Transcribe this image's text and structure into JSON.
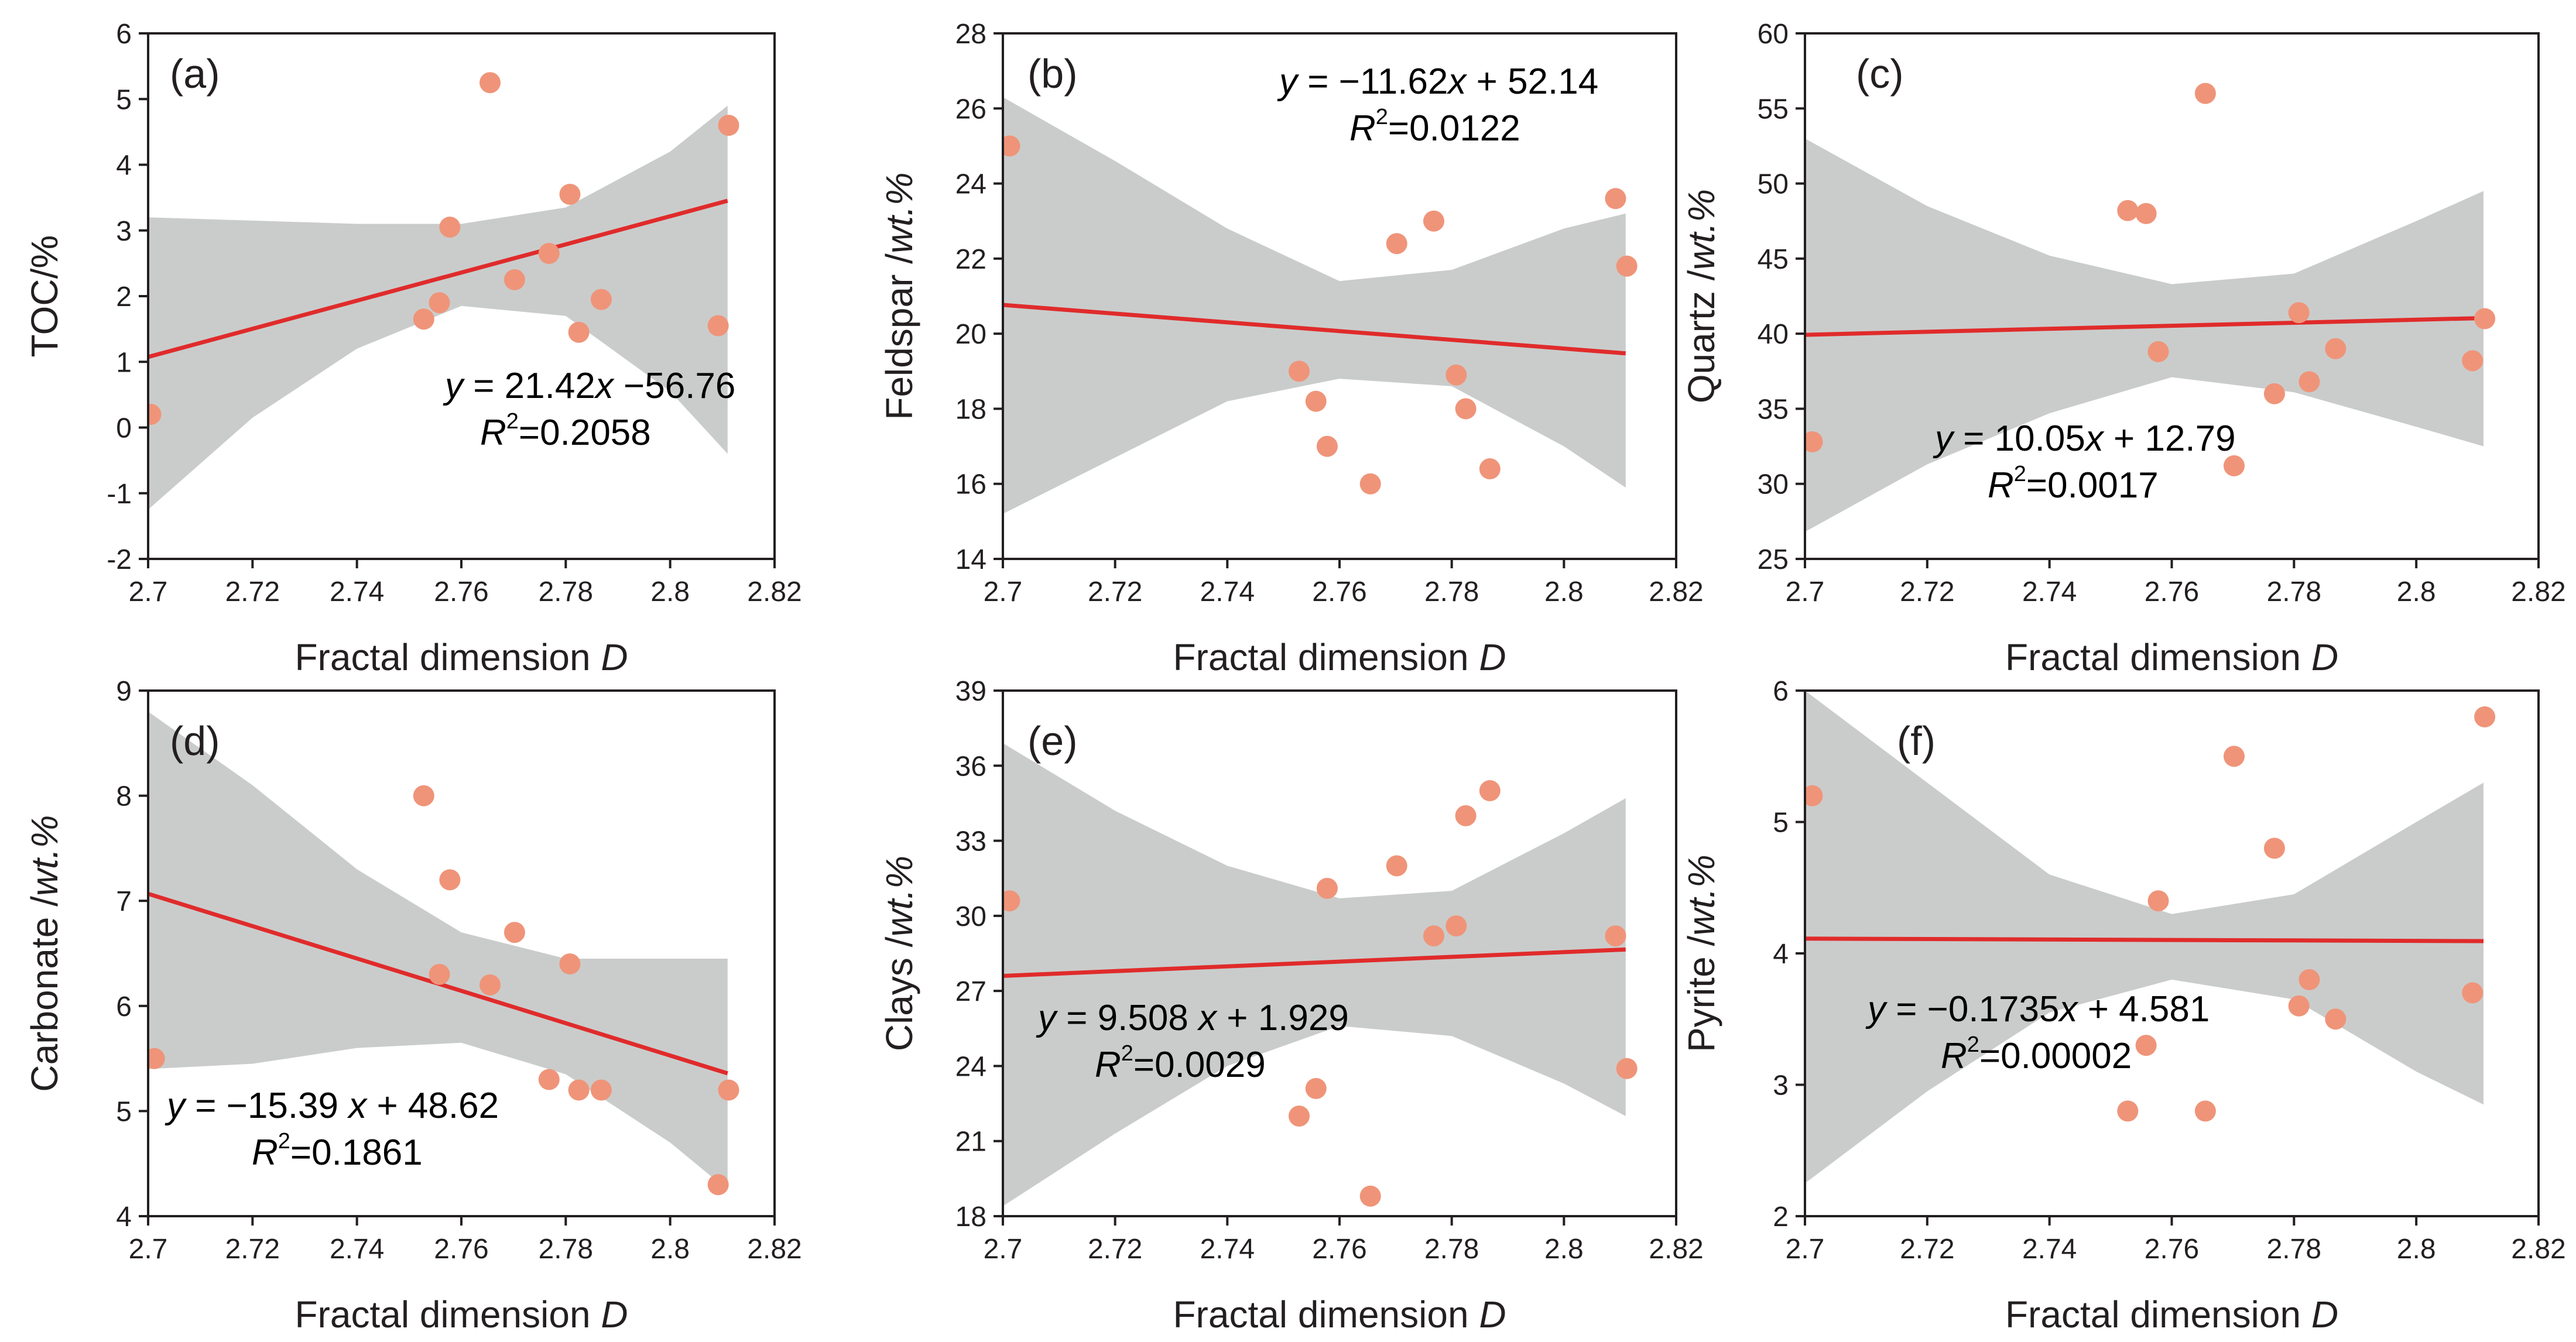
{
  "colors": {
    "regression_line": "#e02b2b",
    "points": "#ef9479",
    "confidence_band": "#cacccb",
    "axis": "#231f20"
  },
  "chart_data": [
    {
      "id": "a",
      "type": "scatter",
      "panel_label": "(a)",
      "xlabel": "Fractal dimension",
      "xlabel_italic": "D",
      "ylabel": "TOC/%",
      "ylabel_italic": "",
      "xlim": [
        2.7,
        2.82
      ],
      "ylim": [
        -2,
        6
      ],
      "x_ticks": [
        "2.7",
        "2.72",
        "2.74",
        "2.76",
        "2.78",
        "2.8",
        "2.82"
      ],
      "y_ticks": [
        "-2",
        "-1",
        "0",
        "1",
        "2",
        "3",
        "4",
        "5",
        "6"
      ],
      "points": [
        [
          2.7005,
          0.2
        ],
        [
          2.7528,
          1.65
        ],
        [
          2.7558,
          1.9
        ],
        [
          2.7578,
          3.05
        ],
        [
          2.7655,
          5.25
        ],
        [
          2.7702,
          2.25
        ],
        [
          2.7768,
          2.65
        ],
        [
          2.7808,
          3.55
        ],
        [
          2.7825,
          1.45
        ],
        [
          2.7868,
          1.95
        ],
        [
          2.8092,
          1.55
        ],
        [
          2.8112,
          4.6
        ]
      ],
      "fit": {
        "slope": 21.42,
        "intercept": -56.76
      },
      "band_x": [
        2.7,
        2.72,
        2.74,
        2.76,
        2.78,
        2.8,
        2.811
      ],
      "band_upper": [
        3.2,
        3.15,
        3.1,
        3.1,
        3.35,
        4.2,
        4.9
      ],
      "band_lower": [
        -1.25,
        0.15,
        1.2,
        1.85,
        1.7,
        0.55,
        -0.4
      ],
      "equation": {
        "lhs": "y",
        "rhs": " = 21.42",
        "var": "x",
        "tail": " −56.76"
      },
      "r2": {
        "r": "R",
        "sup": "2",
        "value": "=0.2058"
      }
    },
    {
      "id": "b",
      "type": "scatter",
      "panel_label": "(b)",
      "xlabel": "Fractal dimension",
      "xlabel_italic": "D",
      "ylabel": "Feldspar /",
      "ylabel_italic": "wt.%",
      "xlim": [
        2.7,
        2.82
      ],
      "ylim": [
        14,
        28
      ],
      "x_ticks": [
        "2.7",
        "2.72",
        "2.74",
        "2.76",
        "2.78",
        "2.8",
        "2.82"
      ],
      "y_ticks": [
        "14",
        "16",
        "18",
        "20",
        "22",
        "24",
        "26",
        "28"
      ],
      "points": [
        [
          2.7012,
          25.0
        ],
        [
          2.7528,
          19.0
        ],
        [
          2.7558,
          18.2
        ],
        [
          2.7578,
          17.0
        ],
        [
          2.7655,
          16.0
        ],
        [
          2.7702,
          22.4
        ],
        [
          2.7768,
          23.0
        ],
        [
          2.7808,
          18.9
        ],
        [
          2.7825,
          18.0
        ],
        [
          2.7868,
          16.4
        ],
        [
          2.8092,
          23.6
        ],
        [
          2.8112,
          21.8
        ]
      ],
      "fit": {
        "slope": -11.62,
        "intercept": 52.14
      },
      "band_x": [
        2.7,
        2.72,
        2.74,
        2.76,
        2.78,
        2.8,
        2.811
      ],
      "band_upper": [
        26.3,
        24.6,
        22.8,
        21.4,
        21.7,
        22.8,
        23.2
      ],
      "band_lower": [
        15.2,
        16.7,
        18.2,
        18.8,
        18.6,
        17.0,
        15.9
      ],
      "equation": {
        "lhs": "y",
        "rhs": " = −11.62",
        "var": "x",
        "tail": " + 52.14"
      },
      "r2": {
        "r": "R",
        "sup": "2",
        "value": "=0.0122"
      }
    },
    {
      "id": "c",
      "type": "scatter",
      "panel_label": "(c)",
      "xlabel": "Fractal dimension",
      "xlabel_italic": "D",
      "ylabel": "Quartz /",
      "ylabel_italic": "wt.%",
      "xlim": [
        2.7,
        2.82
      ],
      "ylim": [
        25,
        60
      ],
      "x_ticks": [
        "2.7",
        "2.72",
        "2.74",
        "2.76",
        "2.78",
        "2.8",
        "2.82"
      ],
      "y_ticks": [
        "25",
        "30",
        "35",
        "40",
        "45",
        "50",
        "55",
        "60"
      ],
      "points": [
        [
          2.7012,
          32.8
        ],
        [
          2.7528,
          48.2
        ],
        [
          2.7558,
          48.0
        ],
        [
          2.7578,
          38.8
        ],
        [
          2.7655,
          56.0
        ],
        [
          2.7702,
          31.2
        ],
        [
          2.7768,
          36.0
        ],
        [
          2.7808,
          41.4
        ],
        [
          2.7825,
          36.8
        ],
        [
          2.7868,
          39.0
        ],
        [
          2.8092,
          38.2
        ],
        [
          2.8112,
          41.0
        ]
      ],
      "fit": {
        "slope": 10.05,
        "intercept": 12.79
      },
      "band_x": [
        2.7,
        2.72,
        2.74,
        2.76,
        2.78,
        2.8,
        2.811
      ],
      "band_upper": [
        53.0,
        48.5,
        45.2,
        43.3,
        44.0,
        47.5,
        49.5
      ],
      "band_lower": [
        26.8,
        31.3,
        34.7,
        37.1,
        36.1,
        33.8,
        32.5
      ],
      "equation": {
        "lhs": "y",
        "rhs": " = 10.05",
        "var": "x",
        "tail": " + 12.79"
      },
      "r2": {
        "r": "R",
        "sup": "2",
        "value": "=0.0017"
      }
    },
    {
      "id": "d",
      "type": "scatter",
      "panel_label": "(d)",
      "xlabel": "Fractal dimension",
      "xlabel_italic": "D",
      "ylabel": "Carbonate /",
      "ylabel_italic": "wt.%",
      "xlim": [
        2.7,
        2.82
      ],
      "ylim": [
        4,
        9
      ],
      "x_ticks": [
        "2.7",
        "2.72",
        "2.74",
        "2.76",
        "2.78",
        "2.8",
        "2.82"
      ],
      "y_ticks": [
        "4",
        "5",
        "6",
        "7",
        "8",
        "9"
      ],
      "points": [
        [
          2.7012,
          5.5
        ],
        [
          2.7528,
          8.0
        ],
        [
          2.7558,
          6.3
        ],
        [
          2.7578,
          7.2
        ],
        [
          2.7655,
          6.2
        ],
        [
          2.7702,
          6.7
        ],
        [
          2.7768,
          5.3
        ],
        [
          2.7808,
          6.4
        ],
        [
          2.7825,
          5.2
        ],
        [
          2.7868,
          5.2
        ],
        [
          2.8092,
          4.3
        ],
        [
          2.8112,
          5.2
        ]
      ],
      "fit": {
        "slope": -15.39,
        "intercept": 48.62
      },
      "band_x": [
        2.7,
        2.72,
        2.74,
        2.76,
        2.78,
        2.8,
        2.811
      ],
      "band_upper": [
        8.8,
        8.1,
        7.3,
        6.7,
        6.45,
        6.45,
        6.45
      ],
      "band_lower": [
        5.4,
        5.45,
        5.6,
        5.65,
        5.35,
        4.7,
        4.25
      ],
      "equation": {
        "lhs": "y",
        "rhs": " = −15.39",
        "var": " x",
        "tail": " + 48.62"
      },
      "r2": {
        "r": "R",
        "sup": "2",
        "value": "=0.1861"
      }
    },
    {
      "id": "e",
      "type": "scatter",
      "panel_label": "(e)",
      "xlabel": "Fractal dimension",
      "xlabel_italic": "D",
      "ylabel": "Clays /",
      "ylabel_italic": "wt.%",
      "xlim": [
        2.7,
        2.82
      ],
      "ylim": [
        18,
        39
      ],
      "x_ticks": [
        "2.7",
        "2.72",
        "2.74",
        "2.76",
        "2.78",
        "2.8",
        "2.82"
      ],
      "y_ticks": [
        "18",
        "21",
        "24",
        "27",
        "30",
        "33",
        "36",
        "39"
      ],
      "points": [
        [
          2.7012,
          30.6
        ],
        [
          2.7528,
          22.0
        ],
        [
          2.7558,
          23.1
        ],
        [
          2.7578,
          31.1
        ],
        [
          2.7655,
          18.8
        ],
        [
          2.7702,
          32.0
        ],
        [
          2.7768,
          29.2
        ],
        [
          2.7808,
          29.6
        ],
        [
          2.7825,
          34.0
        ],
        [
          2.7868,
          35.0
        ],
        [
          2.8092,
          29.2
        ],
        [
          2.8112,
          23.9
        ]
      ],
      "fit": {
        "slope": 9.508,
        "intercept": 1.929
      },
      "band_x": [
        2.7,
        2.72,
        2.74,
        2.76,
        2.78,
        2.8,
        2.811
      ],
      "band_upper": [
        36.9,
        34.2,
        32.0,
        30.7,
        31.0,
        33.3,
        34.7
      ],
      "band_lower": [
        18.4,
        21.3,
        24.0,
        25.6,
        25.2,
        23.3,
        22.0
      ],
      "equation": {
        "lhs": "y",
        "rhs": " = 9.508",
        "var": " x",
        "tail": " + 1.929"
      },
      "r2": {
        "r": "R",
        "sup": "2",
        "value": "=0.0029"
      }
    },
    {
      "id": "f",
      "type": "scatter",
      "panel_label": "(f)",
      "xlabel": "Fractal dimension",
      "xlabel_italic": "D",
      "ylabel": "Pyrite /",
      "ylabel_italic": "wt.%",
      "xlim": [
        2.7,
        2.82
      ],
      "ylim": [
        2,
        6
      ],
      "x_ticks": [
        "2.7",
        "2.72",
        "2.74",
        "2.76",
        "2.78",
        "2.8",
        "2.82"
      ],
      "y_ticks": [
        "2",
        "3",
        "4",
        "5",
        "6"
      ],
      "points": [
        [
          2.7012,
          5.2
        ],
        [
          2.7528,
          2.8
        ],
        [
          2.7558,
          3.3
        ],
        [
          2.7578,
          4.4
        ],
        [
          2.7655,
          2.8
        ],
        [
          2.7702,
          5.5
        ],
        [
          2.7768,
          4.8
        ],
        [
          2.7808,
          3.6
        ],
        [
          2.7825,
          3.8
        ],
        [
          2.7868,
          3.5
        ],
        [
          2.8092,
          3.7
        ],
        [
          2.8112,
          5.8
        ]
      ],
      "fit": {
        "slope": -0.1735,
        "intercept": 4.581
      },
      "band_x": [
        2.7,
        2.72,
        2.74,
        2.76,
        2.78,
        2.8,
        2.811
      ],
      "band_upper": [
        6.0,
        5.3,
        4.6,
        4.3,
        4.45,
        5.0,
        5.3
      ],
      "band_lower": [
        2.25,
        2.95,
        3.55,
        3.8,
        3.65,
        3.1,
        2.85
      ],
      "equation": {
        "lhs": "y",
        "rhs": " = −0.1735",
        "var": "x",
        "tail": " + 4.581"
      },
      "r2": {
        "r": "R",
        "sup": "2",
        "value": "=0.00002"
      }
    }
  ]
}
